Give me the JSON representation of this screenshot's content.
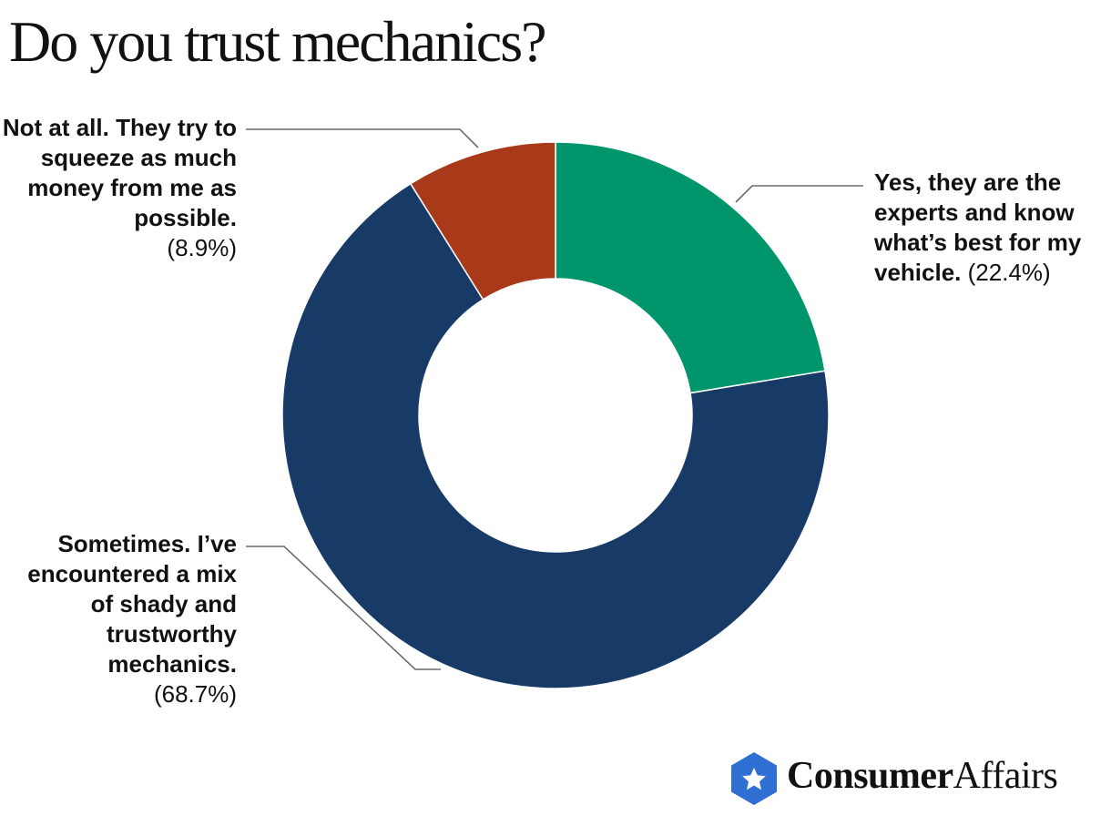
{
  "title": "Do you trust mechanics?",
  "chart_data": {
    "type": "pie",
    "variant": "donut",
    "title": "Do you trust mechanics?",
    "start_angle_deg": 0,
    "direction": "clockwise",
    "slices": [
      {
        "key": "yes",
        "label": "Yes, they are the experts and know what’s best for my vehicle.",
        "value": 22.4,
        "pct_label": "(22.4%)",
        "color": "#00956A"
      },
      {
        "key": "sometimes",
        "label": "Sometimes. I’ve encountered a mix of shady and trustworthy mechanics.",
        "value": 68.7,
        "pct_label": "(68.7%)",
        "color": "#173A66"
      },
      {
        "key": "no",
        "label": "Not at all. They try to squeeze as much money from me as possible.",
        "value": 8.9,
        "pct_label": "(8.9%)",
        "color": "#A83A1A"
      }
    ]
  },
  "brand": {
    "name_bold": "Consumer",
    "name_regular": "Affairs",
    "logo_color": "#2F6FD1",
    "logo_icon": "star-hexagon-icon"
  }
}
